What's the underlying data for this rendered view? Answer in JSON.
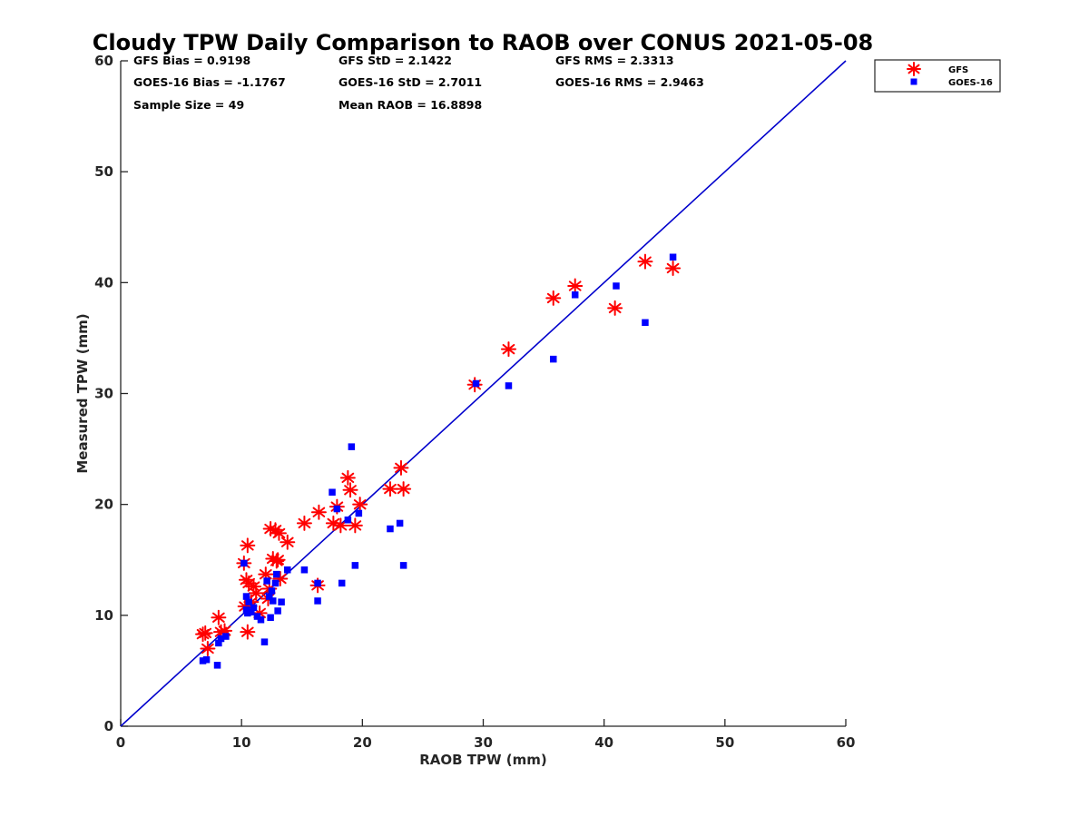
{
  "chart_data": {
    "type": "scatter",
    "title": "Cloudy TPW Daily Comparison to RAOB over CONUS 2021-05-08",
    "xlabel": "RAOB TPW (mm)",
    "ylabel": "Measured TPW (mm)",
    "xlim": [
      0,
      60
    ],
    "ylim": [
      0,
      60
    ],
    "xticks": [
      "0",
      "10",
      "20",
      "30",
      "40",
      "50",
      "60"
    ],
    "yticks": [
      "0",
      "10",
      "20",
      "30",
      "40",
      "50",
      "60"
    ],
    "grid": false,
    "legend_position": "top-right",
    "reference_line": {
      "x": [
        0,
        60
      ],
      "y": [
        0,
        60
      ],
      "color": "#0000cc"
    },
    "stats": [
      [
        "GFS Bias = 0.9198",
        "GFS StD = 2.1422",
        "GFS RMS = 2.3313"
      ],
      [
        "GOES-16 Bias = -1.1767",
        "GOES-16 StD = 2.7011",
        "GOES-16 RMS = 2.9463"
      ],
      [
        "Sample Size = 49",
        "Mean RAOB = 16.8898",
        ""
      ]
    ],
    "series": [
      {
        "name": "GFS",
        "marker": "asterisk",
        "color": "#ff0000",
        "points": [
          [
            6.8,
            8.3
          ],
          [
            7.0,
            8.4
          ],
          [
            7.2,
            7.0
          ],
          [
            8.1,
            9.8
          ],
          [
            8.3,
            8.5
          ],
          [
            8.6,
            8.6
          ],
          [
            10.2,
            14.7
          ],
          [
            10.3,
            10.8
          ],
          [
            10.4,
            13.2
          ],
          [
            10.5,
            16.3
          ],
          [
            10.5,
            8.5
          ],
          [
            10.6,
            12.9
          ],
          [
            10.8,
            11.2
          ],
          [
            11.0,
            12.6
          ],
          [
            11.2,
            12.0
          ],
          [
            11.5,
            10.2
          ],
          [
            12.0,
            13.7
          ],
          [
            12.2,
            11.5
          ],
          [
            12.3,
            12.4
          ],
          [
            12.4,
            17.8
          ],
          [
            12.6,
            15.1
          ],
          [
            12.8,
            17.7
          ],
          [
            12.9,
            14.9
          ],
          [
            13.0,
            15.0
          ],
          [
            13.1,
            17.4
          ],
          [
            13.2,
            13.3
          ],
          [
            13.8,
            16.6
          ],
          [
            15.2,
            18.3
          ],
          [
            16.3,
            12.7
          ],
          [
            16.4,
            19.3
          ],
          [
            17.6,
            18.3
          ],
          [
            17.9,
            19.8
          ],
          [
            18.2,
            18.1
          ],
          [
            18.8,
            22.4
          ],
          [
            19.0,
            21.3
          ],
          [
            19.4,
            18.1
          ],
          [
            19.8,
            20.0
          ],
          [
            22.3,
            21.4
          ],
          [
            23.2,
            23.3
          ],
          [
            23.4,
            21.4
          ],
          [
            29.3,
            30.8
          ],
          [
            32.1,
            34.0
          ],
          [
            35.8,
            38.6
          ],
          [
            37.6,
            39.7
          ],
          [
            40.9,
            37.7
          ],
          [
            43.4,
            41.9
          ],
          [
            45.7,
            41.3
          ]
        ]
      },
      {
        "name": "GOES-16",
        "marker": "square",
        "color": "#0000ff",
        "points": [
          [
            6.8,
            5.9
          ],
          [
            7.1,
            6.0
          ],
          [
            8.0,
            5.5
          ],
          [
            8.1,
            7.5
          ],
          [
            8.3,
            7.9
          ],
          [
            8.7,
            8.1
          ],
          [
            10.2,
            14.7
          ],
          [
            10.4,
            10.5
          ],
          [
            10.4,
            11.7
          ],
          [
            10.5,
            10.2
          ],
          [
            10.6,
            11.2
          ],
          [
            10.8,
            10.3
          ],
          [
            11.0,
            10.7
          ],
          [
            11.3,
            9.9
          ],
          [
            11.6,
            9.6
          ],
          [
            11.9,
            7.6
          ],
          [
            12.1,
            13.1
          ],
          [
            12.3,
            11.7
          ],
          [
            12.4,
            9.8
          ],
          [
            12.5,
            12.2
          ],
          [
            12.6,
            11.3
          ],
          [
            12.8,
            12.9
          ],
          [
            12.9,
            13.7
          ],
          [
            13.0,
            10.4
          ],
          [
            13.3,
            11.2
          ],
          [
            13.8,
            14.1
          ],
          [
            15.2,
            14.1
          ],
          [
            16.3,
            11.3
          ],
          [
            16.3,
            12.9
          ],
          [
            17.5,
            21.1
          ],
          [
            17.9,
            19.6
          ],
          [
            18.3,
            12.9
          ],
          [
            18.8,
            18.6
          ],
          [
            19.1,
            25.2
          ],
          [
            19.4,
            14.5
          ],
          [
            19.7,
            19.2
          ],
          [
            22.3,
            17.8
          ],
          [
            23.1,
            18.3
          ],
          [
            23.4,
            14.5
          ],
          [
            29.4,
            30.9
          ],
          [
            32.1,
            30.7
          ],
          [
            35.8,
            33.1
          ],
          [
            37.6,
            38.9
          ],
          [
            41.0,
            39.7
          ],
          [
            43.4,
            36.4
          ],
          [
            45.7,
            42.3
          ]
        ]
      }
    ]
  }
}
